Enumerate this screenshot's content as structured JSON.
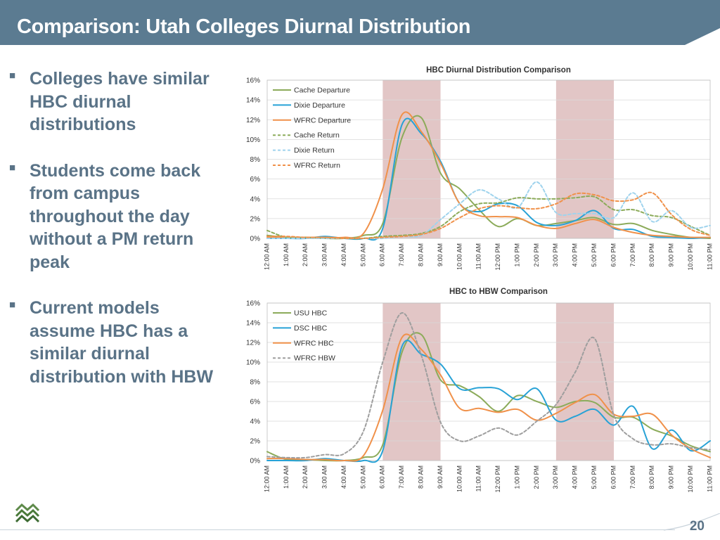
{
  "slide": {
    "title": "Comparison: Utah Colleges Diurnal Distribution",
    "page_number": "20",
    "bullets": [
      "Colleges have similar HBC diurnal distributions",
      "Students come back from campus throughout the day without a PM return peak",
      "Current models assume HBC has a similar diurnal distribution with HBW"
    ],
    "colors": {
      "title_bar": "#5b7b91",
      "text": "#5a7387",
      "shade": "#ddbcbc"
    }
  },
  "chart_data": [
    {
      "type": "line",
      "title": "HBC Diurnal Distribution Comparison",
      "categories": [
        "12:00 AM",
        "1:00 AM",
        "2:00 AM",
        "3:00 AM",
        "4:00 AM",
        "5:00 AM",
        "6:00 AM",
        "7:00 AM",
        "8:00 AM",
        "9:00 AM",
        "10:00 AM",
        "11:00 AM",
        "12:00 PM",
        "1:00 PM",
        "2:00 PM",
        "3:00 PM",
        "4:00 PM",
        "5:00 PM",
        "6:00 PM",
        "7:00 PM",
        "8:00 PM",
        "9:00 PM",
        "10:00 PM",
        "11:00 PM"
      ],
      "y_ticks": [
        "0%",
        "2%",
        "4%",
        "6%",
        "8%",
        "10%",
        "12%",
        "14%",
        "16%"
      ],
      "ylim": [
        0,
        16
      ],
      "shaded_ranges": [
        [
          6,
          9
        ],
        [
          15,
          18
        ]
      ],
      "legend_position": "top-left",
      "grid": true,
      "series": [
        {
          "name": "Cache Departure",
          "color": "#8cab5a",
          "dash": "solid",
          "values": [
            0.3,
            0.1,
            0.1,
            0.0,
            0.0,
            0.3,
            1.5,
            10.2,
            12.2,
            6.6,
            5.0,
            2.9,
            1.2,
            2.0,
            1.3,
            1.5,
            1.8,
            2.1,
            1.4,
            1.5,
            0.8,
            0.4,
            0.1,
            0.0
          ]
        },
        {
          "name": "Dixie Departure",
          "color": "#28a2d6",
          "dash": "solid",
          "values": [
            0.0,
            0.0,
            0.0,
            0.2,
            0.0,
            0.0,
            1.0,
            11.5,
            10.6,
            7.8,
            3.5,
            2.7,
            3.5,
            3.3,
            1.6,
            1.3,
            1.8,
            2.8,
            1.0,
            0.9,
            0.2,
            0.1,
            0.0,
            0.1
          ]
        },
        {
          "name": "WFRC Departure",
          "color": "#f0914a",
          "dash": "solid",
          "values": [
            0.1,
            0.1,
            0.1,
            0.1,
            0.1,
            0.5,
            5.0,
            12.5,
            10.8,
            7.6,
            3.5,
            2.3,
            2.2,
            2.1,
            1.3,
            1.0,
            1.5,
            1.9,
            1.1,
            0.6,
            0.3,
            0.2,
            0.1,
            0.1
          ]
        },
        {
          "name": "Cache Return",
          "color": "#8cab5a",
          "dash": "dashed",
          "values": [
            0.8,
            0.1,
            0.1,
            0.0,
            0.0,
            0.0,
            0.2,
            0.3,
            0.5,
            1.2,
            2.7,
            3.5,
            3.6,
            4.1,
            4.0,
            4.0,
            4.1,
            4.2,
            2.9,
            2.9,
            2.3,
            2.1,
            1.2,
            0.3
          ]
        },
        {
          "name": "Dixie Return",
          "color": "#9fd3ed",
          "dash": "dashed",
          "values": [
            0.0,
            0.0,
            0.0,
            0.0,
            0.0,
            0.0,
            0.0,
            0.2,
            0.3,
            1.9,
            3.5,
            4.9,
            4.0,
            3.1,
            5.7,
            2.6,
            2.5,
            2.5,
            2.1,
            4.6,
            1.7,
            2.8,
            1.1,
            1.3
          ]
        },
        {
          "name": "WFRC Return",
          "color": "#f0914a",
          "dash": "dashed",
          "values": [
            0.2,
            0.2,
            0.1,
            0.1,
            0.0,
            0.0,
            0.1,
            0.2,
            0.4,
            1.0,
            2.1,
            3.0,
            3.3,
            3.1,
            3.0,
            3.5,
            4.5,
            4.4,
            3.8,
            3.9,
            4.6,
            2.4,
            0.9,
            0.3
          ]
        }
      ]
    },
    {
      "type": "line",
      "title": "HBC to HBW Comparison",
      "categories": [
        "12:00 AM",
        "1:00 AM",
        "2:00 AM",
        "3:00 AM",
        "4:00 AM",
        "5:00 AM",
        "6:00 AM",
        "7:00 AM",
        "8:00 AM",
        "9:00 AM",
        "10:00 AM",
        "11:00 AM",
        "12:00 PM",
        "1:00 PM",
        "2:00 PM",
        "3:00 PM",
        "4:00 PM",
        "5:00 PM",
        "6:00 PM",
        "7:00 PM",
        "8:00 PM",
        "9:00 PM",
        "10:00 PM",
        "11:00 PM"
      ],
      "y_ticks": [
        "0%",
        "2%",
        "4%",
        "6%",
        "8%",
        "10%",
        "12%",
        "14%",
        "16%"
      ],
      "ylim": [
        0,
        16
      ],
      "shaded_ranges": [
        [
          6,
          9
        ],
        [
          15,
          18
        ]
      ],
      "legend_position": "top-left",
      "grid": true,
      "series": [
        {
          "name": "USU HBC",
          "color": "#8cab5a",
          "dash": "solid",
          "values": [
            0.9,
            0.1,
            0.1,
            0.0,
            0.0,
            0.3,
            1.6,
            11.0,
            12.8,
            8.2,
            7.6,
            6.5,
            5.0,
            6.6,
            6.0,
            5.4,
            6.0,
            5.9,
            4.4,
            4.4,
            3.2,
            2.5,
            1.5,
            0.9
          ]
        },
        {
          "name": "DSC HBC",
          "color": "#28a2d6",
          "dash": "solid",
          "values": [
            0.0,
            0.0,
            0.0,
            0.2,
            0.0,
            0.0,
            1.0,
            11.6,
            10.8,
            9.8,
            7.3,
            7.4,
            7.3,
            6.2,
            7.3,
            4.1,
            4.5,
            5.2,
            3.6,
            5.5,
            1.2,
            3.1,
            1.0,
            2.0
          ]
        },
        {
          "name": "WFRC HBC",
          "color": "#f0914a",
          "dash": "solid",
          "values": [
            0.2,
            0.2,
            0.1,
            0.1,
            0.0,
            0.5,
            5.1,
            12.5,
            11.3,
            8.7,
            5.3,
            5.3,
            4.9,
            5.2,
            4.1,
            4.8,
            5.9,
            6.7,
            4.7,
            4.5,
            4.7,
            2.6,
            1.2,
            0.3
          ]
        },
        {
          "name": "WFRC HBW",
          "color": "#9e9e9e",
          "dash": "dashed",
          "values": [
            0.4,
            0.3,
            0.3,
            0.6,
            0.7,
            3.0,
            10.0,
            15.0,
            10.7,
            3.9,
            2.0,
            2.5,
            3.3,
            2.6,
            4.0,
            5.7,
            9.0,
            12.4,
            4.6,
            2.2,
            1.6,
            1.7,
            1.3,
            1.1
          ]
        }
      ]
    }
  ]
}
